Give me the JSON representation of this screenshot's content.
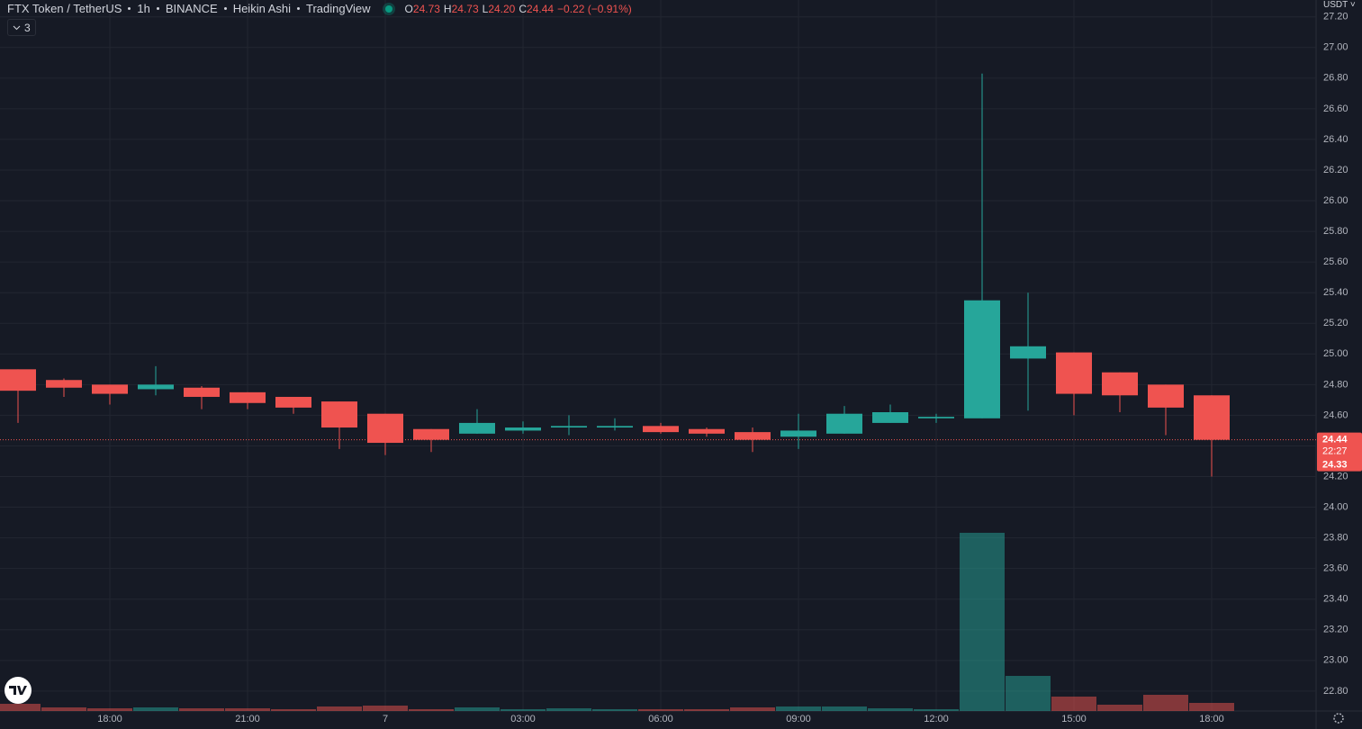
{
  "header": {
    "symbol": "FTX Token / TetherUS",
    "interval": "1h",
    "exchange": "BINANCE",
    "style": "Heikin Ashi",
    "source": "TradingView"
  },
  "legend": [
    {
      "label": "O",
      "value": "24.73"
    },
    {
      "label": "H",
      "value": "24.73"
    },
    {
      "label": "L",
      "value": "24.20"
    },
    {
      "label": "C",
      "value": "24.44"
    }
  ],
  "change": "−0.22 (−0.91%)",
  "indicators_count": "3",
  "currency": "USDT",
  "chart_data": {
    "type": "candlestick",
    "categories": [
      null,
      null,
      "18:00",
      null,
      null,
      "21:00",
      null,
      null,
      "7",
      null,
      null,
      "03:00",
      null,
      null,
      "06:00",
      null,
      null,
      "09:00",
      null,
      null,
      "12:00",
      null,
      null,
      "15:00",
      null,
      null,
      "18:00"
    ],
    "open": [
      24.9,
      24.83,
      24.8,
      24.77,
      24.78,
      24.75,
      24.72,
      24.69,
      24.61,
      24.51,
      24.48,
      24.5,
      24.52,
      24.52,
      24.53,
      24.51,
      24.49,
      24.46,
      24.48,
      24.55,
      24.58,
      24.58,
      24.97,
      25.01,
      24.88,
      24.8,
      24.73
    ],
    "high": [
      24.9,
      24.84,
      24.8,
      24.92,
      24.79,
      24.75,
      24.72,
      24.69,
      24.61,
      24.51,
      24.64,
      24.56,
      24.6,
      24.58,
      24.55,
      24.52,
      24.52,
      24.61,
      24.66,
      24.67,
      24.61,
      26.83,
      25.4,
      25.01,
      24.88,
      24.8,
      24.73
    ],
    "low": [
      24.55,
      24.72,
      24.67,
      24.73,
      24.64,
      24.64,
      24.61,
      24.38,
      24.34,
      24.36,
      24.48,
      24.48,
      24.47,
      24.5,
      24.48,
      24.46,
      24.36,
      24.38,
      24.48,
      24.55,
      24.55,
      24.58,
      24.63,
      24.6,
      24.62,
      24.47,
      24.2
    ],
    "close": [
      24.76,
      24.78,
      24.74,
      24.8,
      24.72,
      24.68,
      24.65,
      24.52,
      24.42,
      24.44,
      24.55,
      24.52,
      24.53,
      24.53,
      24.49,
      24.48,
      24.44,
      24.5,
      24.61,
      24.62,
      24.59,
      25.35,
      25.05,
      24.74,
      24.73,
      24.65,
      24.44
    ],
    "volume": [
      8,
      4,
      3,
      4,
      3,
      3,
      2,
      5,
      6,
      2,
      4,
      2,
      3,
      2,
      2,
      2,
      4,
      5,
      5,
      3,
      2,
      198,
      39,
      16,
      7,
      18,
      9
    ],
    "volume_ylim": [
      0,
      790
    ],
    "up_color": "#26a69a",
    "down_color": "#ef5350",
    "ylim": [
      22.67,
      27.31
    ],
    "yticks": [
      {
        "value": 22.8,
        "label": "22.80"
      },
      {
        "value": 23.0,
        "label": "23.00"
      },
      {
        "value": 23.2,
        "label": "23.20"
      },
      {
        "value": 23.4,
        "label": "23.40"
      },
      {
        "value": 23.6,
        "label": "23.60"
      },
      {
        "value": 23.8,
        "label": "23.80"
      },
      {
        "value": 24.0,
        "label": "24.00"
      },
      {
        "value": 24.2,
        "label": "24.20"
      },
      {
        "value": 24.4,
        "label": "24.40"
      },
      {
        "value": 24.6,
        "label": "24.60"
      },
      {
        "value": 24.8,
        "label": "24.80"
      },
      {
        "value": 25.0,
        "label": "25.00"
      },
      {
        "value": 25.2,
        "label": "25.20"
      },
      {
        "value": 25.4,
        "label": "25.40"
      },
      {
        "value": 25.6,
        "label": "25.60"
      },
      {
        "value": 25.8,
        "label": "25.80"
      },
      {
        "value": 26.0,
        "label": "26.00"
      },
      {
        "value": 26.2,
        "label": "26.20"
      },
      {
        "value": 26.4,
        "label": "26.40"
      },
      {
        "value": 26.6,
        "label": "26.60"
      },
      {
        "value": 26.8,
        "label": "26.80"
      },
      {
        "value": 27.0,
        "label": "27.00"
      },
      {
        "value": 27.2,
        "label": "27.20"
      }
    ],
    "grid": true,
    "last_price": {
      "value": 24.44,
      "label": "24.44"
    },
    "countdown": "22:27",
    "second_price_label": "24.33"
  }
}
